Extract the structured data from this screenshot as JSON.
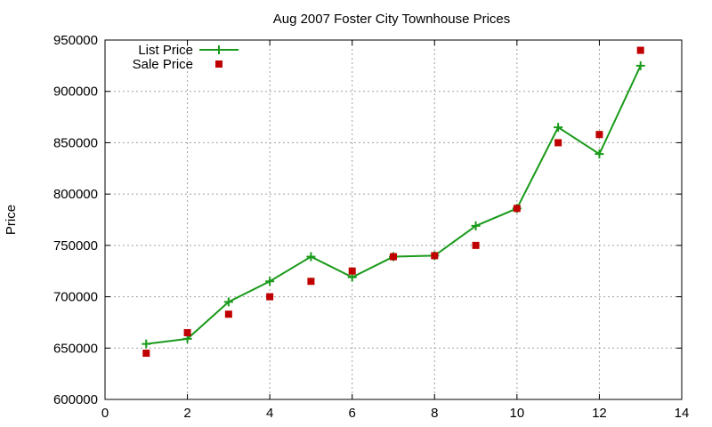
{
  "chart_data": {
    "type": "line",
    "title": "Aug 2007 Foster City Townhouse Prices",
    "xlabel": "",
    "ylabel": "Price",
    "xlim": [
      0,
      14
    ],
    "ylim": [
      600000,
      950000
    ],
    "xticks": [
      0,
      2,
      4,
      6,
      8,
      10,
      12,
      14
    ],
    "yticks": [
      600000,
      650000,
      700000,
      750000,
      800000,
      850000,
      900000,
      950000
    ],
    "grid": true,
    "legend_position": "top-left",
    "series": [
      {
        "name": "List Price",
        "style": "line-with-plus-markers",
        "color": "#1a9a1a",
        "x": [
          1,
          2,
          3,
          4,
          5,
          6,
          7,
          8,
          9,
          10,
          11,
          12,
          13
        ],
        "values": [
          654000,
          659000,
          695000,
          715000,
          739000,
          719000,
          739000,
          740000,
          769000,
          786000,
          865000,
          839000,
          925000
        ]
      },
      {
        "name": "Sale Price",
        "style": "square-markers",
        "color": "#c00000",
        "x": [
          1,
          2,
          3,
          4,
          5,
          6,
          7,
          8,
          9,
          10,
          11,
          12,
          13
        ],
        "values": [
          645000,
          665000,
          683000,
          700000,
          715000,
          725000,
          739000,
          740000,
          750000,
          786000,
          850000,
          858000,
          940000
        ]
      }
    ]
  }
}
